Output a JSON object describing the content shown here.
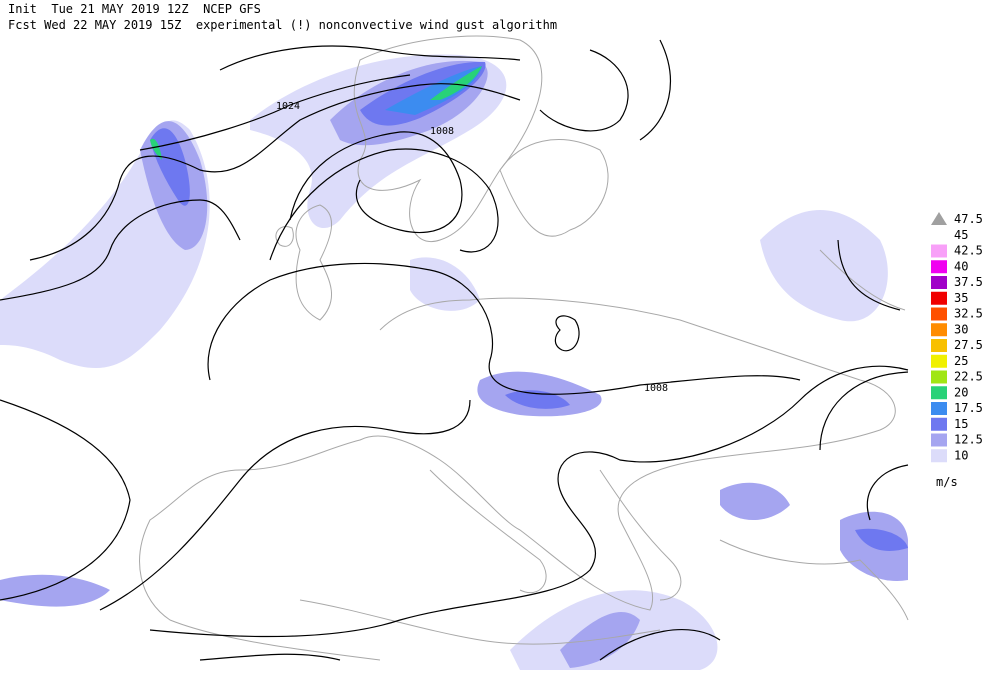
{
  "header": {
    "line1": "Init  Tue 21 MAY 2019 12Z  NCEP GFS",
    "line2": "Fcst Wed 22 MAY 2019 15Z  experimental (!) nonconvective wind gust algorithm"
  },
  "isobar_labels": [
    "1024",
    "1008",
    "1008"
  ],
  "legend": {
    "entries": [
      {
        "label": "47.5",
        "color": "#a0a0a0"
      },
      {
        "label": "45"
      },
      {
        "label": "42.5",
        "color": "#f8a0f8"
      },
      {
        "label": "40",
        "color": "#f000f0"
      },
      {
        "label": "37.5",
        "color": "#a000c8"
      },
      {
        "label": "35",
        "color": "#f00000"
      },
      {
        "label": "32.5",
        "color": "#ff5000"
      },
      {
        "label": "30",
        "color": "#ff8c00"
      },
      {
        "label": "27.5",
        "color": "#f8c000"
      },
      {
        "label": "25",
        "color": "#f0f000"
      },
      {
        "label": "22.5",
        "color": "#a0e614"
      },
      {
        "label": "20",
        "color": "#28d278"
      },
      {
        "label": "17.5",
        "color": "#3c8cf0"
      },
      {
        "label": "15",
        "color": "#6e78f0"
      },
      {
        "label": "12.5",
        "color": "#a5a5f0"
      },
      {
        "label": "10",
        "color": "#dcdcfa"
      }
    ],
    "unit": "m/s"
  }
}
